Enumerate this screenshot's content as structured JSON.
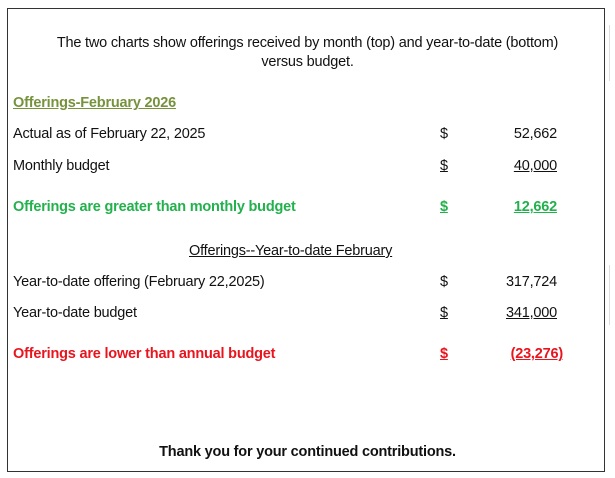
{
  "intro": {
    "line1": "The two charts show offerings received by month (top) and year-to-date (bottom)",
    "line2": "versus budget."
  },
  "monthly": {
    "heading": "Offerings-February 2026",
    "rows": [
      {
        "label": "Actual as of February 22, 2025",
        "currency": "$",
        "value": "52,662"
      },
      {
        "label": "Monthly budget",
        "currency": "$",
        "value": "40,000"
      },
      {
        "label": "Offerings are greater than monthly budget",
        "currency": "$",
        "value": "12,662"
      }
    ]
  },
  "ytd": {
    "heading": "Offerings--Year-to-date February",
    "rows": [
      {
        "label": "Year-to-date offering (February 22,2025)",
        "currency": "$",
        "value": "317,724"
      },
      {
        "label": "Year-to-date budget",
        "currency": "$",
        "value": "341,000"
      },
      {
        "label": "Offerings are lower than annual budget",
        "currency": "$",
        "value": "(23,276)"
      }
    ]
  },
  "footer": "Thank you for your continued contributions.",
  "colors": {
    "heading_green": "#76923c",
    "positive_green": "#22b14c",
    "negative_red": "#e8141e"
  }
}
